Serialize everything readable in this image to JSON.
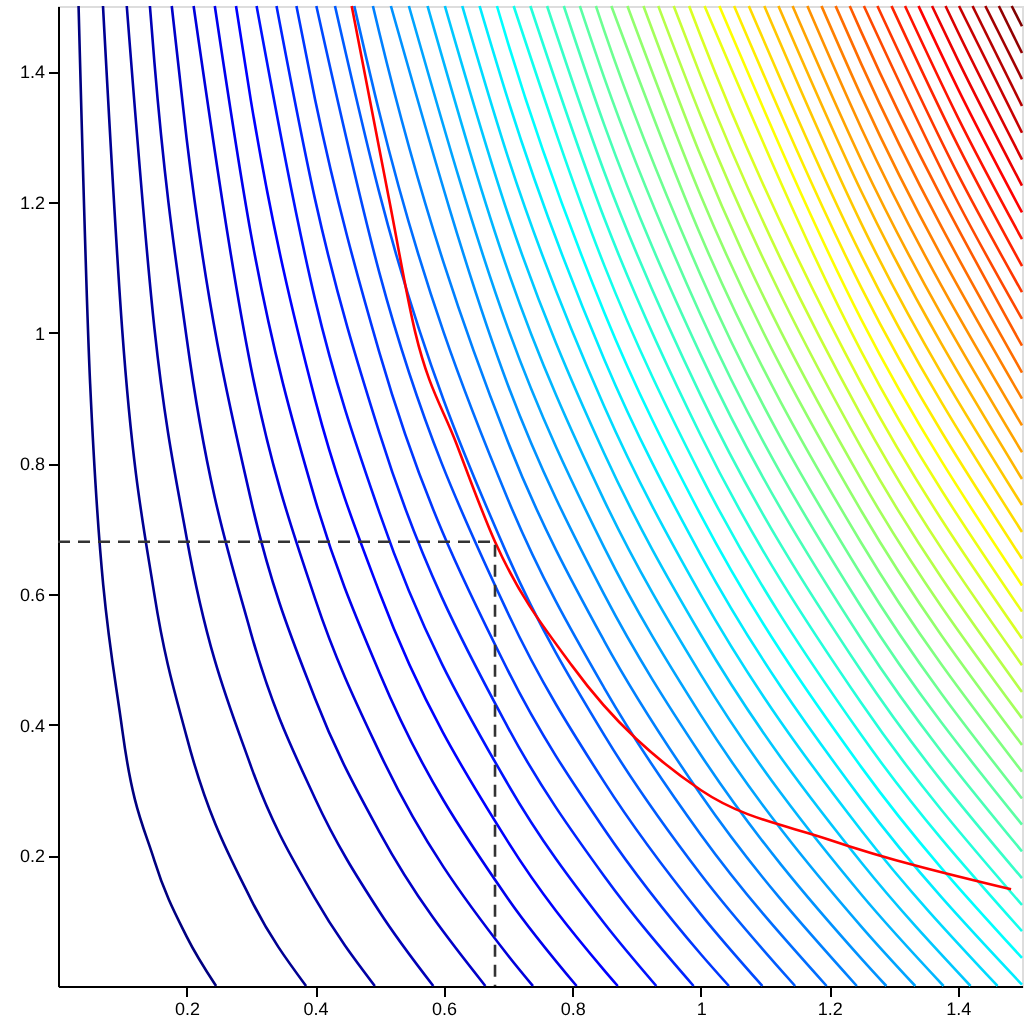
{
  "chart_data": {
    "type": "line",
    "xlim": [
      0,
      1.5
    ],
    "ylim": [
      0,
      1.5
    ],
    "xticks": [
      0.2,
      0.4,
      0.6,
      0.8,
      1,
      1.2,
      1.4
    ],
    "yticks": [
      0.2,
      0.4,
      0.6,
      0.8,
      1,
      1.2,
      1.4
    ],
    "grid": false,
    "marker": "none",
    "line_style": "solid",
    "series": [
      {
        "color": "#000080",
        "x": [
          0.032,
          0.05,
          0.1,
          0.15,
          0.2,
          0.246
        ],
        "values": [
          1.5,
          0.922,
          0.392,
          0.192,
          0.076,
          0
        ]
      },
      {
        "color": "#000092",
        "x": [
          0.07,
          0.1,
          0.15,
          0.2,
          0.3,
          0.386
        ],
        "values": [
          1.5,
          1.003,
          0.599,
          0.382,
          0.133,
          0
        ]
      },
      {
        "color": "#0000a4",
        "x": [
          0.107,
          0.15,
          0.2,
          0.3,
          0.4,
          0.493
        ],
        "values": [
          1.5,
          1.007,
          0.687,
          0.337,
          0.134,
          0
        ]
      },
      {
        "color": "#0000b6",
        "x": [
          0.143,
          0.15,
          0.2,
          0.3,
          0.4,
          0.5,
          0.584
        ],
        "values": [
          1.5,
          1.414,
          0.993,
          0.541,
          0.287,
          0.114,
          0
        ]
      },
      {
        "color": "#0000c8",
        "x": [
          0.177,
          0.2,
          0.3,
          0.4,
          0.5,
          0.665
        ],
        "values": [
          1.5,
          1.298,
          0.745,
          0.44,
          0.236,
          0
        ]
      },
      {
        "color": "#0000db",
        "x": [
          0.211,
          0.3,
          0.4,
          0.5,
          0.7,
          0.739
        ],
        "values": [
          1.5,
          0.948,
          0.593,
          0.358,
          0.047,
          0
        ]
      },
      {
        "color": "#0000ed",
        "x": [
          0.244,
          0.3,
          0.4,
          0.5,
          0.7,
          0.807
        ],
        "values": [
          1.5,
          1.152,
          0.745,
          0.48,
          0.134,
          0
        ]
      },
      {
        "color": "#0000ff",
        "x": [
          0.277,
          0.3,
          0.4,
          0.5,
          0.7,
          0.85,
          0.871
        ],
        "values": [
          1.5,
          1.356,
          0.898,
          0.603,
          0.221,
          0.024,
          0
        ]
      },
      {
        "color": "#0012ff",
        "x": [
          0.309,
          0.4,
          0.5,
          0.7,
          0.85,
          0.931
        ],
        "values": [
          1.5,
          1.051,
          0.725,
          0.309,
          0.096,
          0
        ]
      },
      {
        "color": "#0024ff",
        "x": [
          0.34,
          0.4,
          0.5,
          0.7,
          0.85,
          0.989
        ],
        "values": [
          1.5,
          1.204,
          0.847,
          0.396,
          0.168,
          0
        ]
      },
      {
        "color": "#0037ff",
        "x": [
          0.371,
          0.4,
          0.5,
          0.7,
          0.85,
          1.0,
          1.044
        ],
        "values": [
          1.5,
          1.357,
          0.97,
          0.483,
          0.24,
          0.049,
          0
        ]
      },
      {
        "color": "#0049ff",
        "x": [
          0.402,
          0.5,
          0.7,
          0.85,
          1.0,
          1.096
        ],
        "values": [
          1.5,
          1.092,
          0.571,
          0.312,
          0.11,
          0
        ]
      },
      {
        "color": "#005bff",
        "x": [
          0.431,
          0.5,
          0.7,
          0.85,
          1.0,
          1.147
        ],
        "values": [
          1.5,
          1.214,
          0.658,
          0.384,
          0.171,
          0
        ]
      },
      {
        "color": "#006dff",
        "x": [
          0.461,
          0.5,
          0.7,
          0.85,
          1.0,
          1.196
        ],
        "values": [
          1.5,
          1.337,
          0.745,
          0.456,
          0.232,
          0
        ]
      },
      {
        "color": "#0080ff",
        "x": [
          0.49,
          0.5,
          0.7,
          0.85,
          1.0,
          1.243
        ],
        "values": [
          1.5,
          1.459,
          0.833,
          0.528,
          0.293,
          0
        ]
      },
      {
        "color": "#0092ff",
        "x": [
          0.518,
          0.7,
          0.85,
          1.0,
          1.25,
          1.289
        ],
        "values": [
          1.5,
          0.92,
          0.599,
          0.354,
          0.042,
          0
        ]
      },
      {
        "color": "#00a4ff",
        "x": [
          0.546,
          0.7,
          0.85,
          1.0,
          1.25,
          1.334
        ],
        "values": [
          1.5,
          1.007,
          0.671,
          0.415,
          0.091,
          0
        ]
      },
      {
        "color": "#00b6ff",
        "x": [
          0.575,
          0.7,
          0.85,
          1.0,
          1.25,
          1.378
        ],
        "values": [
          1.5,
          1.095,
          0.743,
          0.477,
          0.14,
          0
        ]
      },
      {
        "color": "#00c8ff",
        "x": [
          0.602,
          0.7,
          0.85,
          1.0,
          1.25,
          1.42
        ],
        "values": [
          1.5,
          1.182,
          0.815,
          0.538,
          0.189,
          0
        ]
      },
      {
        "color": "#00dbff",
        "x": [
          0.629,
          0.7,
          0.85,
          1.0,
          1.25,
          1.462
        ],
        "values": [
          1.5,
          1.269,
          0.887,
          0.599,
          0.238,
          0
        ]
      },
      {
        "color": "#00edff",
        "x": [
          0.656,
          0.7,
          0.85,
          1.0,
          1.25,
          1.5
        ],
        "values": [
          1.5,
          1.357,
          0.959,
          0.66,
          0.286,
          0.002
        ]
      },
      {
        "color": "#00ffff",
        "x": [
          0.683,
          0.7,
          0.85,
          1.0,
          1.25,
          1.5
        ],
        "values": [
          1.5,
          1.444,
          1.031,
          0.721,
          0.335,
          0.043
        ]
      },
      {
        "color": "#12ffed",
        "x": [
          0.709,
          0.85,
          1.0,
          1.25,
          1.5
        ],
        "values": [
          1.5,
          1.103,
          0.782,
          0.384,
          0.084
        ]
      },
      {
        "color": "#24ffdb",
        "x": [
          0.735,
          0.85,
          1.0,
          1.25,
          1.5
        ],
        "values": [
          1.5,
          1.175,
          0.843,
          0.433,
          0.124
        ]
      },
      {
        "color": "#37ffc8",
        "x": [
          0.761,
          0.85,
          1.0,
          1.25,
          1.5
        ],
        "values": [
          1.5,
          1.246,
          0.904,
          0.482,
          0.165
        ]
      },
      {
        "color": "#49ffb6",
        "x": [
          0.787,
          0.85,
          1.0,
          1.25,
          1.5
        ],
        "values": [
          1.5,
          1.318,
          0.966,
          0.531,
          0.206
        ]
      },
      {
        "color": "#5bffa4",
        "x": [
          0.812,
          0.85,
          1.0,
          1.25,
          1.5
        ],
        "values": [
          1.5,
          1.39,
          1.027,
          0.58,
          0.247
        ]
      },
      {
        "color": "#6dff92",
        "x": [
          0.837,
          0.85,
          1.0,
          1.25,
          1.5
        ],
        "values": [
          1.5,
          1.462,
          1.088,
          0.629,
          0.287
        ]
      },
      {
        "color": "#80ff80",
        "x": [
          0.861,
          1.0,
          1.25,
          1.5
        ],
        "values": [
          1.5,
          1.149,
          0.678,
          0.328
        ]
      },
      {
        "color": "#92ff6d",
        "x": [
          0.886,
          1.0,
          1.25,
          1.5
        ],
        "values": [
          1.5,
          1.21,
          0.727,
          0.369
        ]
      },
      {
        "color": "#a4ff5b",
        "x": [
          0.911,
          1.0,
          1.25,
          1.5
        ],
        "values": [
          1.5,
          1.271,
          0.775,
          0.41
        ]
      },
      {
        "color": "#b6ff49",
        "x": [
          0.934,
          1.0,
          1.25,
          1.5
        ],
        "values": [
          1.5,
          1.332,
          0.824,
          0.45
        ]
      },
      {
        "color": "#c8ff37",
        "x": [
          0.958,
          1.0,
          1.25,
          1.5
        ],
        "values": [
          1.5,
          1.393,
          0.873,
          0.491
        ]
      },
      {
        "color": "#dbff24",
        "x": [
          0.982,
          1.0,
          1.25,
          1.5
        ],
        "values": [
          1.5,
          1.454,
          0.922,
          0.532
        ]
      },
      {
        "color": "#edff12",
        "x": [
          1.006,
          1.25,
          1.5
        ],
        "values": [
          1.5,
          0.971,
          0.573
        ]
      },
      {
        "color": "#ffff00",
        "x": [
          1.029,
          1.25,
          1.5
        ],
        "values": [
          1.5,
          1.02,
          0.613
        ]
      },
      {
        "color": "#ffed00",
        "x": [
          1.052,
          1.25,
          1.5
        ],
        "values": [
          1.5,
          1.069,
          0.654
        ]
      },
      {
        "color": "#ffdb00",
        "x": [
          1.075,
          1.25,
          1.5
        ],
        "values": [
          1.5,
          1.118,
          0.695
        ]
      },
      {
        "color": "#ffc800",
        "x": [
          1.099,
          1.25,
          1.5
        ],
        "values": [
          1.5,
          1.167,
          0.736
        ]
      },
      {
        "color": "#ffb600",
        "x": [
          1.121,
          1.25,
          1.5
        ],
        "values": [
          1.5,
          1.216,
          0.776
        ]
      },
      {
        "color": "#ffa400",
        "x": [
          1.143,
          1.25,
          1.5
        ],
        "values": [
          1.5,
          1.264,
          0.817
        ]
      },
      {
        "color": "#ff9200",
        "x": [
          1.166,
          1.25,
          1.5
        ],
        "values": [
          1.5,
          1.313,
          0.858
        ]
      },
      {
        "color": "#ff8000",
        "x": [
          1.188,
          1.25,
          1.5
        ],
        "values": [
          1.5,
          1.362,
          0.899
        ]
      },
      {
        "color": "#ff6d00",
        "x": [
          1.21,
          1.25,
          1.5
        ],
        "values": [
          1.5,
          1.411,
          0.939
        ]
      },
      {
        "color": "#ff5b00",
        "x": [
          1.232,
          1.25,
          1.5
        ],
        "values": [
          1.5,
          1.46,
          0.98
        ]
      },
      {
        "color": "#ff4900",
        "x": [
          1.254,
          1.4,
          1.5
        ],
        "values": [
          1.5,
          1.2,
          1.021
        ]
      },
      {
        "color": "#ff3700",
        "x": [
          1.275,
          1.4,
          1.5
        ],
        "values": [
          1.5,
          1.243,
          1.062
        ]
      },
      {
        "color": "#ff2400",
        "x": [
          1.297,
          1.4,
          1.5
        ],
        "values": [
          1.5,
          1.287,
          1.102
        ]
      },
      {
        "color": "#ff1200",
        "x": [
          1.318,
          1.4,
          1.5
        ],
        "values": [
          1.5,
          1.33,
          1.143
        ]
      },
      {
        "color": "#ff0000",
        "x": [
          1.339,
          1.4,
          1.5
        ],
        "values": [
          1.5,
          1.374,
          1.184
        ]
      },
      {
        "color": "#ed0000",
        "x": [
          1.36,
          1.4,
          1.5
        ],
        "values": [
          1.5,
          1.418,
          1.225
        ]
      },
      {
        "color": "#db0000",
        "x": [
          1.381,
          1.4,
          1.5
        ],
        "values": [
          1.5,
          1.461,
          1.265
        ]
      },
      {
        "color": "#c80000",
        "x": [
          1.402,
          1.5
        ],
        "values": [
          1.5,
          1.306
        ]
      },
      {
        "color": "#b60000",
        "x": [
          1.423,
          1.5
        ],
        "values": [
          1.5,
          1.347
        ]
      },
      {
        "color": "#a40000",
        "x": [
          1.443,
          1.5
        ],
        "values": [
          1.5,
          1.388
        ]
      },
      {
        "color": "#920000",
        "x": [
          1.464,
          1.5
        ],
        "values": [
          1.5,
          1.428
        ]
      },
      {
        "color": "#800000",
        "x": [
          1.484,
          1.5
        ],
        "values": [
          1.5,
          1.469
        ]
      },
      {
        "color": "#ff0000",
        "x": [
          0.457,
          0.515,
          0.556,
          0.62,
          0.68,
          0.8,
          1.0,
          1.2,
          1.483
        ],
        "values": [
          1.5,
          1.205,
          1.0,
          0.83,
          0.68,
          0.49,
          0.3,
          0.224,
          0.148
        ]
      },
      {
        "color": "#333333",
        "line_style": "dashed",
        "x": [
          0,
          0.68,
          0.68
        ],
        "values": [
          0.68,
          0.68,
          0
        ]
      }
    ]
  }
}
